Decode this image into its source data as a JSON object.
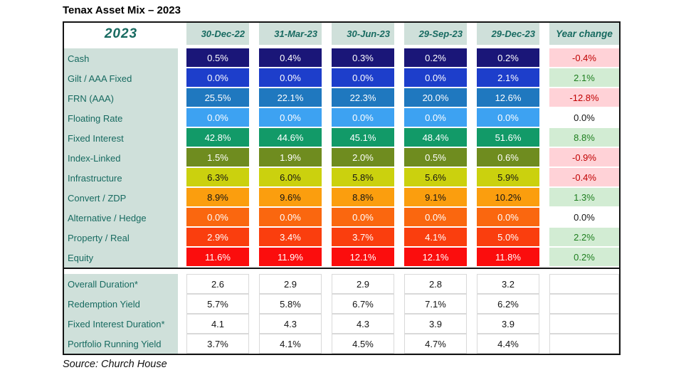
{
  "title": "Tenax Asset Mix – 2023",
  "source": "Source: Church House",
  "table": {
    "corner_label": "2023",
    "date_headers": [
      "30-Dec-22",
      "31-Mar-23",
      "30-Jun-23",
      "29-Sep-23",
      "29-Dec-23"
    ],
    "year_change_header": "Year change",
    "asset_rows": [
      {
        "label": "Cash",
        "values": [
          "0.5%",
          "0.4%",
          "0.3%",
          "0.2%",
          "0.2%"
        ],
        "year_change": "-0.4%",
        "row_color": "#1a1678",
        "change_type": "negative"
      },
      {
        "label": "Gilt / AAA Fixed",
        "values": [
          "0.0%",
          "0.0%",
          "0.0%",
          "0.0%",
          "2.1%"
        ],
        "year_change": "2.1%",
        "row_color": "#1d3ecb",
        "change_type": "positive"
      },
      {
        "label": "FRN (AAA)",
        "values": [
          "25.5%",
          "22.1%",
          "22.3%",
          "20.0%",
          "12.6%"
        ],
        "year_change": "-12.8%",
        "row_color": "#1f78bf",
        "change_type": "negative"
      },
      {
        "label": "Floating Rate",
        "values": [
          "0.0%",
          "0.0%",
          "0.0%",
          "0.0%",
          "0.0%"
        ],
        "year_change": "0.0%",
        "row_color": "#3da2f2",
        "change_type": "zero"
      },
      {
        "label": "Fixed Interest",
        "values": [
          "42.8%",
          "44.6%",
          "45.1%",
          "48.4%",
          "51.6%"
        ],
        "year_change": "8.8%",
        "row_color": "#129a68",
        "change_type": "positive"
      },
      {
        "label": "Index-Linked",
        "values": [
          "1.5%",
          "1.9%",
          "2.0%",
          "0.5%",
          "0.6%"
        ],
        "year_change": "-0.9%",
        "row_color": "#6f8c1f",
        "change_type": "negative"
      },
      {
        "label": "Infrastructure",
        "values": [
          "6.3%",
          "6.0%",
          "5.8%",
          "5.6%",
          "5.9%"
        ],
        "year_change": "-0.4%",
        "row_color": "#cbd10e",
        "change_type": "negative"
      },
      {
        "label": "Convert / ZDP",
        "values": [
          "8.9%",
          "9.6%",
          "8.8%",
          "9.1%",
          "10.2%"
        ],
        "year_change": "1.3%",
        "row_color": "#fb9e0e",
        "change_type": "positive"
      },
      {
        "label": "Alternative / Hedge",
        "values": [
          "0.0%",
          "0.0%",
          "0.0%",
          "0.0%",
          "0.0%"
        ],
        "year_change": "0.0%",
        "row_color": "#fa670f",
        "change_type": "zero"
      },
      {
        "label": "Property / Real",
        "values": [
          "2.9%",
          "3.4%",
          "3.7%",
          "4.1%",
          "5.0%"
        ],
        "year_change": "2.2%",
        "row_color": "#fa3e0e",
        "change_type": "positive"
      },
      {
        "label": "Equity",
        "values": [
          "11.6%",
          "11.9%",
          "12.1%",
          "12.1%",
          "11.8%"
        ],
        "year_change": "0.2%",
        "row_color": "#fb0d0d",
        "change_type": "positive"
      }
    ],
    "metric_rows": [
      {
        "label": "Overall Duration*",
        "values": [
          "2.6",
          "2.9",
          "2.9",
          "2.8",
          "3.2"
        ]
      },
      {
        "label": "Redemption Yield",
        "values": [
          "5.7%",
          "5.8%",
          "6.7%",
          "7.1%",
          "6.2%"
        ]
      },
      {
        "label": "Fixed Interest Duration*",
        "values": [
          "4.1",
          "4.3",
          "4.3",
          "3.9",
          "3.9"
        ]
      },
      {
        "label": "Portfolio Running Yield",
        "values": [
          "3.7%",
          "4.1%",
          "4.5%",
          "4.7%",
          "4.4%"
        ]
      }
    ]
  },
  "colors": {
    "header_bg": "#cfe0da",
    "header_text": "#176a60",
    "negative_bg": "#ffd2d7",
    "negative_text": "#c00000",
    "positive_bg": "#d2ecd3",
    "positive_text": "#1e7e1e",
    "zero_bg": "#ffffff",
    "border": "#141414",
    "gridline": "#d9d9d9"
  },
  "chart_data": {
    "type": "table",
    "title": "Tenax Asset Mix – 2023",
    "columns": [
      "2023",
      "30-Dec-22",
      "31-Mar-23",
      "30-Jun-23",
      "29-Sep-23",
      "29-Dec-23",
      "Year change"
    ],
    "rows": [
      [
        "Cash",
        0.5,
        0.4,
        0.3,
        0.2,
        0.2,
        -0.4
      ],
      [
        "Gilt / AAA Fixed",
        0.0,
        0.0,
        0.0,
        0.0,
        2.1,
        2.1
      ],
      [
        "FRN (AAA)",
        25.5,
        22.1,
        22.3,
        20.0,
        12.6,
        -12.8
      ],
      [
        "Floating Rate",
        0.0,
        0.0,
        0.0,
        0.0,
        0.0,
        0.0
      ],
      [
        "Fixed Interest",
        42.8,
        44.6,
        45.1,
        48.4,
        51.6,
        8.8
      ],
      [
        "Index-Linked",
        1.5,
        1.9,
        2.0,
        0.5,
        0.6,
        -0.9
      ],
      [
        "Infrastructure",
        6.3,
        6.0,
        5.8,
        5.6,
        5.9,
        -0.4
      ],
      [
        "Convert / ZDP",
        8.9,
        9.6,
        8.8,
        9.1,
        10.2,
        1.3
      ],
      [
        "Alternative / Hedge",
        0.0,
        0.0,
        0.0,
        0.0,
        0.0,
        0.0
      ],
      [
        "Property / Real",
        2.9,
        3.4,
        3.7,
        4.1,
        5.0,
        2.2
      ],
      [
        "Equity",
        11.6,
        11.9,
        12.1,
        12.1,
        11.8,
        0.2
      ]
    ],
    "metric_rows": [
      [
        "Overall Duration*",
        2.6,
        2.9,
        2.9,
        2.8,
        3.2,
        null
      ],
      [
        "Redemption Yield",
        5.7,
        5.8,
        6.7,
        7.1,
        6.2,
        null
      ],
      [
        "Fixed Interest Duration*",
        4.1,
        4.3,
        4.3,
        3.9,
        3.9,
        null
      ],
      [
        "Portfolio Running Yield",
        3.7,
        4.1,
        4.5,
        4.7,
        4.4,
        null
      ]
    ],
    "units": "percent of portfolio (durations in years)",
    "source": "Source: Church House"
  }
}
